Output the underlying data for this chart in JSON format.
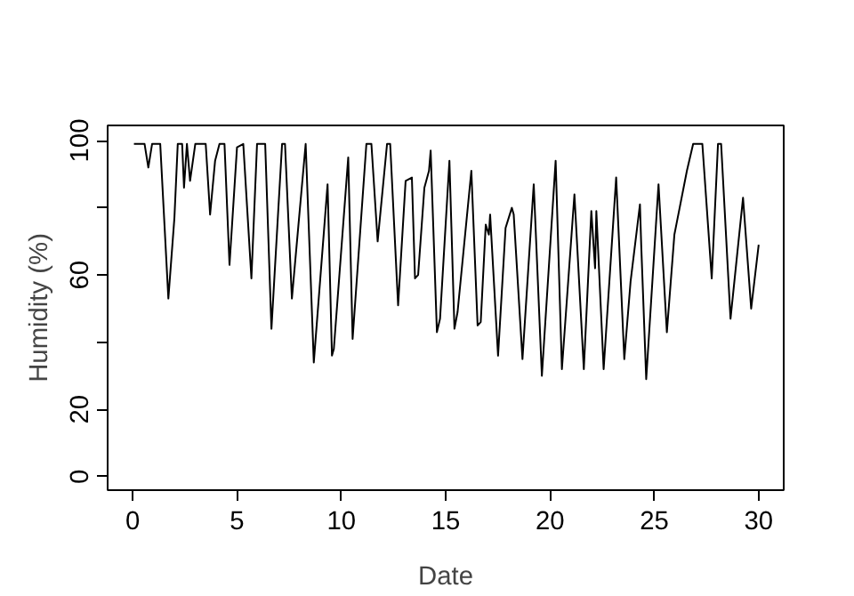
{
  "chart_data": {
    "type": "line",
    "xlabel": "Date",
    "ylabel": "Humidity (%)",
    "xlim": [
      -1.2,
      31.2
    ],
    "ylim": [
      -4,
      104.5
    ],
    "xticks": [
      0,
      5,
      10,
      15,
      20,
      25,
      30
    ],
    "yticks": [
      0,
      20,
      {
        "value": 40,
        "label": null
      },
      60,
      {
        "value": 80,
        "label": null
      },
      100
    ],
    "grid": false,
    "series": [
      {
        "color": "#000000",
        "x": [
          0.06,
          0.57,
          0.75,
          0.93,
          1.32,
          1.71,
          2.0,
          2.16,
          2.37,
          2.46,
          2.6,
          2.75,
          3.0,
          3.5,
          3.71,
          3.95,
          4.16,
          4.4,
          4.64,
          5.0,
          5.3,
          5.69,
          5.96,
          6.35,
          6.65,
          7.16,
          7.3,
          7.63,
          8.29,
          8.68,
          9.34,
          9.55,
          9.64,
          10.33,
          10.54,
          11.2,
          11.44,
          11.74,
          12.19,
          12.34,
          12.72,
          13.08,
          13.38,
          13.53,
          13.68,
          13.98,
          14.2,
          14.28,
          14.58,
          14.73,
          15.18,
          15.42,
          15.57,
          16.23,
          16.53,
          16.68,
          16.92,
          17.07,
          17.13,
          17.51,
          17.87,
          18.17,
          18.26,
          18.68,
          19.22,
          19.61,
          20.27,
          20.57,
          21.17,
          21.62,
          21.98,
          22.16,
          22.22,
          22.57,
          23.17,
          23.56,
          23.86,
          24.31,
          24.37,
          24.61,
          25.2,
          25.6,
          25.96,
          26.56,
          26.86,
          27.3,
          27.75,
          28.05,
          28.2,
          28.65,
          29.25,
          29.64,
          30.0
        ],
        "values": [
          99,
          99,
          92,
          99,
          99,
          53,
          77,
          99,
          99,
          86,
          99,
          88,
          99,
          99,
          78,
          94,
          99,
          99,
          63,
          98,
          99,
          59,
          99,
          99,
          44,
          99,
          99,
          53,
          99,
          34,
          87,
          36,
          38,
          95,
          41,
          99,
          99,
          70,
          99,
          99,
          51,
          88,
          89,
          59,
          60,
          86,
          91,
          97,
          43,
          47,
          94,
          44,
          49,
          91,
          45,
          46,
          75,
          72,
          78,
          36,
          74,
          80,
          78,
          35,
          87,
          30,
          94,
          32,
          84,
          32,
          79,
          62,
          79,
          32,
          89,
          35,
          58,
          81,
          69,
          29,
          87,
          43,
          72,
          91,
          99,
          99,
          59,
          99,
          99,
          47,
          83,
          50,
          69
        ]
      }
    ]
  }
}
